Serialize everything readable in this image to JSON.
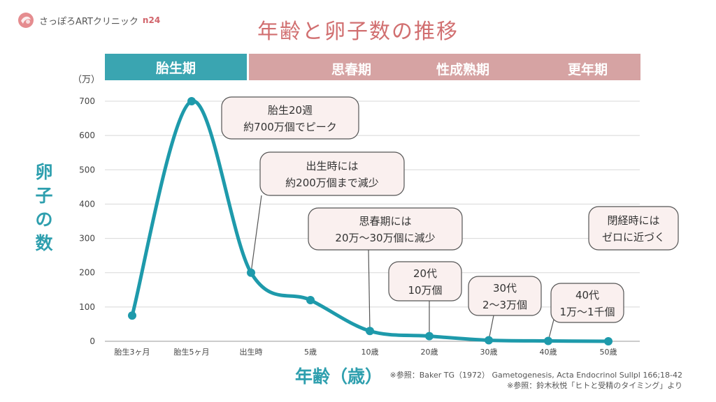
{
  "brand": {
    "name": "さっぽろARTクリニック",
    "suffix": "n24"
  },
  "title": "年齢と卵子数の推移",
  "phases": {
    "fetal": "胎生期",
    "puberty": "思春期",
    "mature": "性成熟期",
    "menopause": "更年期"
  },
  "ylabel": "卵子の数",
  "xlabel": "年齢（歳）",
  "sources": [
    "※参照：Baker TG（1972） Gametogenesis, Acta Endocrinol Sullpl 166;18-42",
    "※参照：鈴木秋悦「ヒトと受精のタイミング」より"
  ],
  "colors": {
    "line": "#1e9aab",
    "fetal": "#3aa5b1",
    "phase": "#d6a3a3",
    "title": "#d16f70",
    "callout_fill": "#faf0ef"
  },
  "chart_data": {
    "type": "line",
    "categories": [
      "胎生3ヶ月",
      "胎生5ヶ月",
      "出生時",
      "5歳",
      "10歳",
      "20歳",
      "30歳",
      "40歳",
      "50歳"
    ],
    "values": [
      75,
      700,
      200,
      120,
      30,
      15,
      3,
      1,
      0
    ],
    "yunit": "（万）",
    "yticks": [
      0,
      100,
      200,
      300,
      400,
      500,
      600,
      700
    ],
    "ylim": [
      0,
      700
    ],
    "grid": true,
    "annotations": [
      {
        "lines": [
          "胎生20週",
          "約700万個でピーク"
        ],
        "point": 1
      },
      {
        "lines": [
          "出生時には",
          "約200万個まで減少"
        ],
        "point": 2
      },
      {
        "lines": [
          "思春期には",
          "20万～30万個に減少"
        ],
        "point": 4
      },
      {
        "lines": [
          "20代",
          "10万個"
        ],
        "point": 5
      },
      {
        "lines": [
          "30代",
          "2～3万個"
        ],
        "point": 6
      },
      {
        "lines": [
          "40代",
          "1万～1千個"
        ],
        "point": 7
      },
      {
        "lines": [
          "閉経時には",
          "ゼロに近づく"
        ],
        "point": null
      }
    ]
  }
}
